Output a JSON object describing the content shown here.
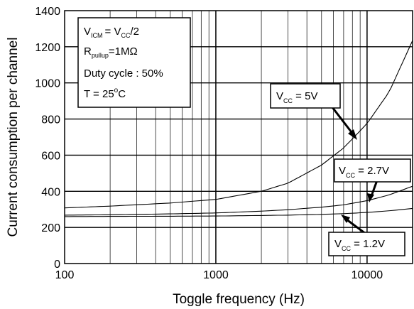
{
  "chart_data": {
    "type": "line",
    "xlabel": "Toggle frequency (Hz)",
    "ylabel": "Current consumption per channel",
    "x_scale": "log",
    "xlim": [
      100,
      20000
    ],
    "ylim": [
      0,
      1400
    ],
    "x_ticks": [
      100,
      1000,
      10000
    ],
    "x_tick_labels": [
      "100",
      "1000",
      "10000"
    ],
    "y_ticks": [
      0,
      200,
      400,
      600,
      800,
      1000,
      1200,
      1400
    ],
    "y_tick_labels": [
      "0",
      "200",
      "400",
      "600",
      "800",
      "1000",
      "1200",
      "1400"
    ],
    "grid": true,
    "series": [
      {
        "name": "VCC = 5V",
        "x": [
          100,
          200,
          500,
          1000,
          2000,
          3000,
          5000,
          7000,
          10000,
          14000,
          20000
        ],
        "y": [
          308,
          318,
          335,
          355,
          400,
          445,
          545,
          640,
          775,
          950,
          1235
        ]
      },
      {
        "name": "VCC = 2.7V",
        "x": [
          100,
          200,
          500,
          1000,
          2000,
          3000,
          5000,
          7000,
          10000,
          14000,
          20000
        ],
        "y": [
          268,
          270,
          275,
          280,
          290,
          298,
          312,
          325,
          348,
          380,
          428
        ]
      },
      {
        "name": "VCC = 1.2V",
        "x": [
          100,
          200,
          500,
          1000,
          2000,
          3000,
          5000,
          7000,
          10000,
          14000,
          20000
        ],
        "y": [
          260,
          261,
          262,
          263,
          266,
          268,
          272,
          276,
          283,
          292,
          305
        ]
      }
    ],
    "conditions": {
      "vicm": "= V",
      "vicm_tail": "/2",
      "rpullup": "=1MΩ",
      "duty": "Duty cycle : 50%",
      "temp": "T = 25",
      "temp_unit": "C"
    },
    "annotations": [
      {
        "label_main": "V",
        "label_sub": "CC",
        "label_tail": " = 5V"
      },
      {
        "label_main": "V",
        "label_sub": "CC",
        "label_tail": " = 2.7V"
      },
      {
        "label_main": "V",
        "label_sub": "CC",
        "label_tail": " = 1.2V"
      }
    ],
    "legend_symbols": {
      "v": "V",
      "icm": "ICM",
      "cc": "CC",
      "r": "R",
      "pullup": "pullup",
      "deg": "o"
    }
  }
}
